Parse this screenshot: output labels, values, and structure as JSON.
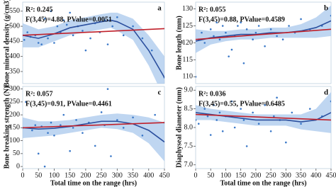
{
  "chart_data": [
    {
      "type": "scatter",
      "title": "a",
      "ylabel": "Bone mineral density (g/cm3)",
      "annotations": [
        "R²: 0.245",
        "F(3,45)=4.88, PValue=0.0051"
      ],
      "xlim": [
        0,
        450
      ],
      "ylim": [
        310,
        580
      ],
      "yticks": [
        350,
        400,
        450,
        500,
        550
      ],
      "series": [
        {
          "mode": "band",
          "color": "#a9c8ec",
          "x": [
            0,
            50,
            100,
            150,
            200,
            250,
            280,
            300,
            350,
            400,
            450
          ],
          "values": [
            510,
            490,
            500,
            520,
            530,
            540,
            545,
            545,
            525,
            470,
            400
          ],
          "lower": [
            430,
            430,
            450,
            470,
            480,
            490,
            495,
            485,
            455,
            370,
            260
          ]
        },
        {
          "mode": "markers",
          "color": "#3a78c8",
          "x": [
            0,
            5,
            15,
            25,
            40,
            50,
            60,
            70,
            80,
            90,
            100,
            110,
            120,
            130,
            140,
            150,
            160,
            175,
            190,
            200,
            215,
            230,
            245,
            260,
            270,
            285,
            300,
            320,
            350,
            380,
            410,
            450
          ],
          "values": [
            470,
            455,
            480,
            465,
            470,
            445,
            440,
            525,
            460,
            550,
            445,
            500,
            480,
            520,
            505,
            545,
            470,
            500,
            485,
            420,
            460,
            510,
            480,
            520,
            440,
            500,
            530,
            470,
            500,
            460,
            420,
            330
          ]
        },
        {
          "mode": "line",
          "color": "#2b4f9e",
          "x": [
            0,
            50,
            100,
            150,
            200,
            250,
            280,
            300,
            350,
            400,
            450
          ],
          "values": [
            470,
            460,
            475,
            495,
            505,
            515,
            520,
            515,
            490,
            420,
            330
          ]
        },
        {
          "mode": "line",
          "color": "#c0202a",
          "x": [
            0,
            450
          ],
          "values": [
            470,
            492
          ]
        }
      ]
    },
    {
      "type": "scatter",
      "title": "b",
      "ylabel": "Bone length (mm)",
      "annotations": [
        "R²: 0.055",
        "F(3,45)=0.88, PValue=0.4589"
      ],
      "xlim": [
        0,
        450
      ],
      "ylim": [
        108,
        132
      ],
      "yticks": [
        110,
        115,
        120,
        125,
        130
      ],
      "series": [
        {
          "mode": "band",
          "color": "#a9c8ec",
          "x": [
            0,
            50,
            100,
            150,
            200,
            250,
            300,
            350,
            400,
            450
          ],
          "values": [
            124,
            123.5,
            123.5,
            124,
            124,
            124.5,
            124.5,
            125.5,
            127.5,
            131
          ],
          "lower": [
            117,
            119.5,
            120.5,
            121,
            121,
            121.5,
            121.5,
            121.5,
            121.5,
            122
          ]
        },
        {
          "mode": "markers",
          "color": "#3a78c8",
          "x": [
            0,
            10,
            20,
            30,
            50,
            60,
            70,
            80,
            90,
            100,
            110,
            120,
            130,
            140,
            150,
            160,
            170,
            190,
            200,
            210,
            230,
            250,
            270,
            290,
            310,
            330,
            350,
            380,
            420,
            450
          ],
          "values": [
            110,
            121,
            123,
            120,
            124,
            122,
            126,
            121,
            125,
            123,
            116,
            118,
            122,
            125,
            126,
            114,
            124,
            121,
            123,
            125,
            119,
            124,
            122,
            121,
            125,
            123,
            127,
            124,
            125,
            128
          ]
        },
        {
          "mode": "line",
          "color": "#2b4f9e",
          "x": [
            0,
            50,
            100,
            150,
            200,
            250,
            300,
            350,
            400,
            450
          ],
          "values": [
            120.5,
            121.5,
            122,
            122.5,
            122.5,
            123,
            123,
            123.5,
            124.5,
            126.5
          ]
        },
        {
          "mode": "line",
          "color": "#c0202a",
          "x": [
            0,
            450
          ],
          "values": [
            121,
            124
          ]
        }
      ]
    },
    {
      "type": "scatter",
      "title": "c",
      "ylabel": "Bone breaking strength (N)",
      "xlabel": "Total time on the range (hrs)",
      "annotations": [
        "R²: 0.057",
        "F(3,45)=0.91, PValue=0.4461"
      ],
      "xlim": [
        0,
        450
      ],
      "xticks": [
        0,
        50,
        100,
        150,
        200,
        250,
        300,
        350,
        400,
        450
      ],
      "ylim": [
        -8,
        310
      ],
      "yticks": [
        0,
        50,
        100,
        150,
        200,
        250,
        300
      ],
      "series": [
        {
          "mode": "band",
          "color": "#a9c8ec",
          "x": [
            0,
            50,
            100,
            150,
            200,
            250,
            300,
            350,
            400,
            450
          ],
          "values": [
            190,
            175,
            175,
            180,
            190,
            200,
            205,
            200,
            190,
            170
          ],
          "lower": [
            110,
            115,
            120,
            130,
            140,
            150,
            145,
            130,
            90,
            20
          ]
        },
        {
          "mode": "markers",
          "color": "#3a78c8",
          "x": [
            0,
            10,
            30,
            40,
            50,
            60,
            70,
            80,
            90,
            100,
            120,
            130,
            150,
            160,
            170,
            190,
            210,
            230,
            250,
            260,
            270,
            280,
            300,
            320,
            350,
            380,
            420,
            450
          ],
          "values": [
            150,
            250,
            140,
            160,
            50,
            155,
            0,
            130,
            170,
            120,
            160,
            200,
            60,
            150,
            180,
            130,
            170,
            80,
            210,
            160,
            300,
            40,
            180,
            150,
            190,
            120,
            200,
            170
          ]
        },
        {
          "mode": "line",
          "color": "#2b4f9e",
          "x": [
            0,
            50,
            100,
            150,
            200,
            250,
            300,
            350,
            400,
            450
          ],
          "values": [
            150,
            145,
            148,
            155,
            165,
            175,
            175,
            165,
            140,
            95
          ]
        },
        {
          "mode": "line",
          "color": "#c0202a",
          "x": [
            0,
            450
          ],
          "values": [
            150,
            170
          ]
        }
      ]
    },
    {
      "type": "scatter",
      "title": "d",
      "ylabel": "Diaphyseal diameter (mm)",
      "xlabel": "Total time on the range (hrs)",
      "annotations": [
        "R²: 0.036",
        "F(3,45)=0.55, PValue=0.6485"
      ],
      "xlim": [
        0,
        450
      ],
      "xticks": [
        0,
        50,
        100,
        150,
        200,
        250,
        300,
        350,
        400,
        450
      ],
      "ylim": [
        6.9,
        9.1
      ],
      "yticks": [
        {
          "value": 7,
          "label": "7.0"
        },
        {
          "value": 7.5,
          "label": "7.5"
        },
        {
          "value": 8,
          "label": "8.0"
        },
        {
          "value": 8.5,
          "label": "8.5"
        },
        {
          "value": 9,
          "label": "9.0"
        }
      ],
      "series": [
        {
          "mode": "band",
          "color": "#a9c8ec",
          "x": [
            0,
            50,
            100,
            150,
            200,
            250,
            300,
            350,
            400,
            450
          ],
          "values": [
            8.6,
            8.5,
            8.45,
            8.4,
            8.35,
            8.35,
            8.35,
            8.35,
            8.5,
            8.95
          ],
          "lower": [
            8.2,
            8.2,
            8.15,
            8.1,
            8.05,
            8.05,
            8.05,
            7.95,
            7.9,
            7.85
          ]
        },
        {
          "mode": "markers",
          "color": "#3a78c8",
          "x": [
            0,
            10,
            30,
            40,
            50,
            60,
            70,
            80,
            90,
            100,
            120,
            130,
            150,
            160,
            170,
            190,
            210,
            230,
            250,
            260,
            270,
            280,
            300,
            320,
            350,
            380,
            420,
            450
          ],
          "values": [
            8.2,
            8.1,
            8.5,
            8.3,
            7.8,
            8.6,
            8.2,
            8.4,
            7.9,
            8.3,
            8.7,
            8.0,
            8.5,
            8.2,
            7.5,
            8.4,
            8.1,
            8.6,
            7.9,
            8.3,
            8.8,
            8.2,
            7.6,
            8.4,
            8.1,
            8.5,
            8.3,
            8.7
          ]
        },
        {
          "mode": "line",
          "color": "#2b4f9e",
          "x": [
            0,
            50,
            100,
            150,
            200,
            250,
            300,
            350,
            400,
            450
          ],
          "values": [
            8.4,
            8.35,
            8.3,
            8.25,
            8.2,
            8.2,
            8.2,
            8.15,
            8.2,
            8.4
          ]
        },
        {
          "mode": "line",
          "color": "#c0202a",
          "x": [
            0,
            450
          ],
          "values": [
            8.35,
            8.2
          ]
        }
      ]
    }
  ]
}
